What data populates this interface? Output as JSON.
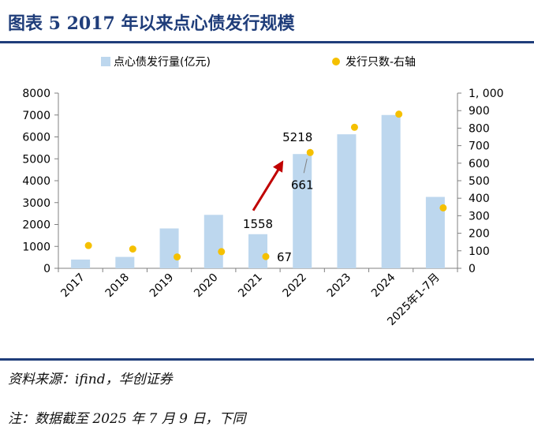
{
  "figure": {
    "title": "图表 5   2017 年以来点心债发行规模",
    "source": "资料来源：ifind，华创证券",
    "note": "注：数据截至 2025 年 7 月 9 日，下同"
  },
  "chart_data": {
    "type": "bar",
    "categories": [
      "2017",
      "2018",
      "2019",
      "2020",
      "2021",
      "2022",
      "2023",
      "2024",
      "2025年1-7月"
    ],
    "series": [
      {
        "name": "点心债发行量(亿元)",
        "kind": "bar",
        "axis": "left",
        "color": "#bdd7ee",
        "values": [
          400,
          520,
          1820,
          2440,
          1558,
          5218,
          6120,
          7000,
          3260
        ]
      },
      {
        "name": "发行只数-右轴",
        "kind": "scatter",
        "axis": "right",
        "color": "#f5c000",
        "values": [
          130,
          110,
          65,
          95,
          67,
          661,
          805,
          880,
          345
        ]
      }
    ],
    "y_left": {
      "min": 0,
      "max": 8000,
      "step": 1000,
      "ticks": [
        "0",
        "1000",
        "2000",
        "3000",
        "4000",
        "5000",
        "6000",
        "7000",
        "8000"
      ]
    },
    "y_right": {
      "min": 0,
      "max": 1000,
      "step": 100,
      "ticks": [
        "0",
        "100",
        "200",
        "300",
        "400",
        "500",
        "600",
        "700",
        "800",
        "900",
        "1, 000"
      ]
    },
    "annotations": [
      {
        "text": "1558",
        "refers_to": "2021 bar"
      },
      {
        "text": "67",
        "refers_to": "2021 dot"
      },
      {
        "text": "5218",
        "refers_to": "2022 bar"
      },
      {
        "text": "661",
        "refers_to": "2022 dot"
      }
    ],
    "arrow": {
      "from": "2021",
      "to": "2022",
      "color": "#c00000"
    },
    "legend_position": "top",
    "grid": false
  }
}
